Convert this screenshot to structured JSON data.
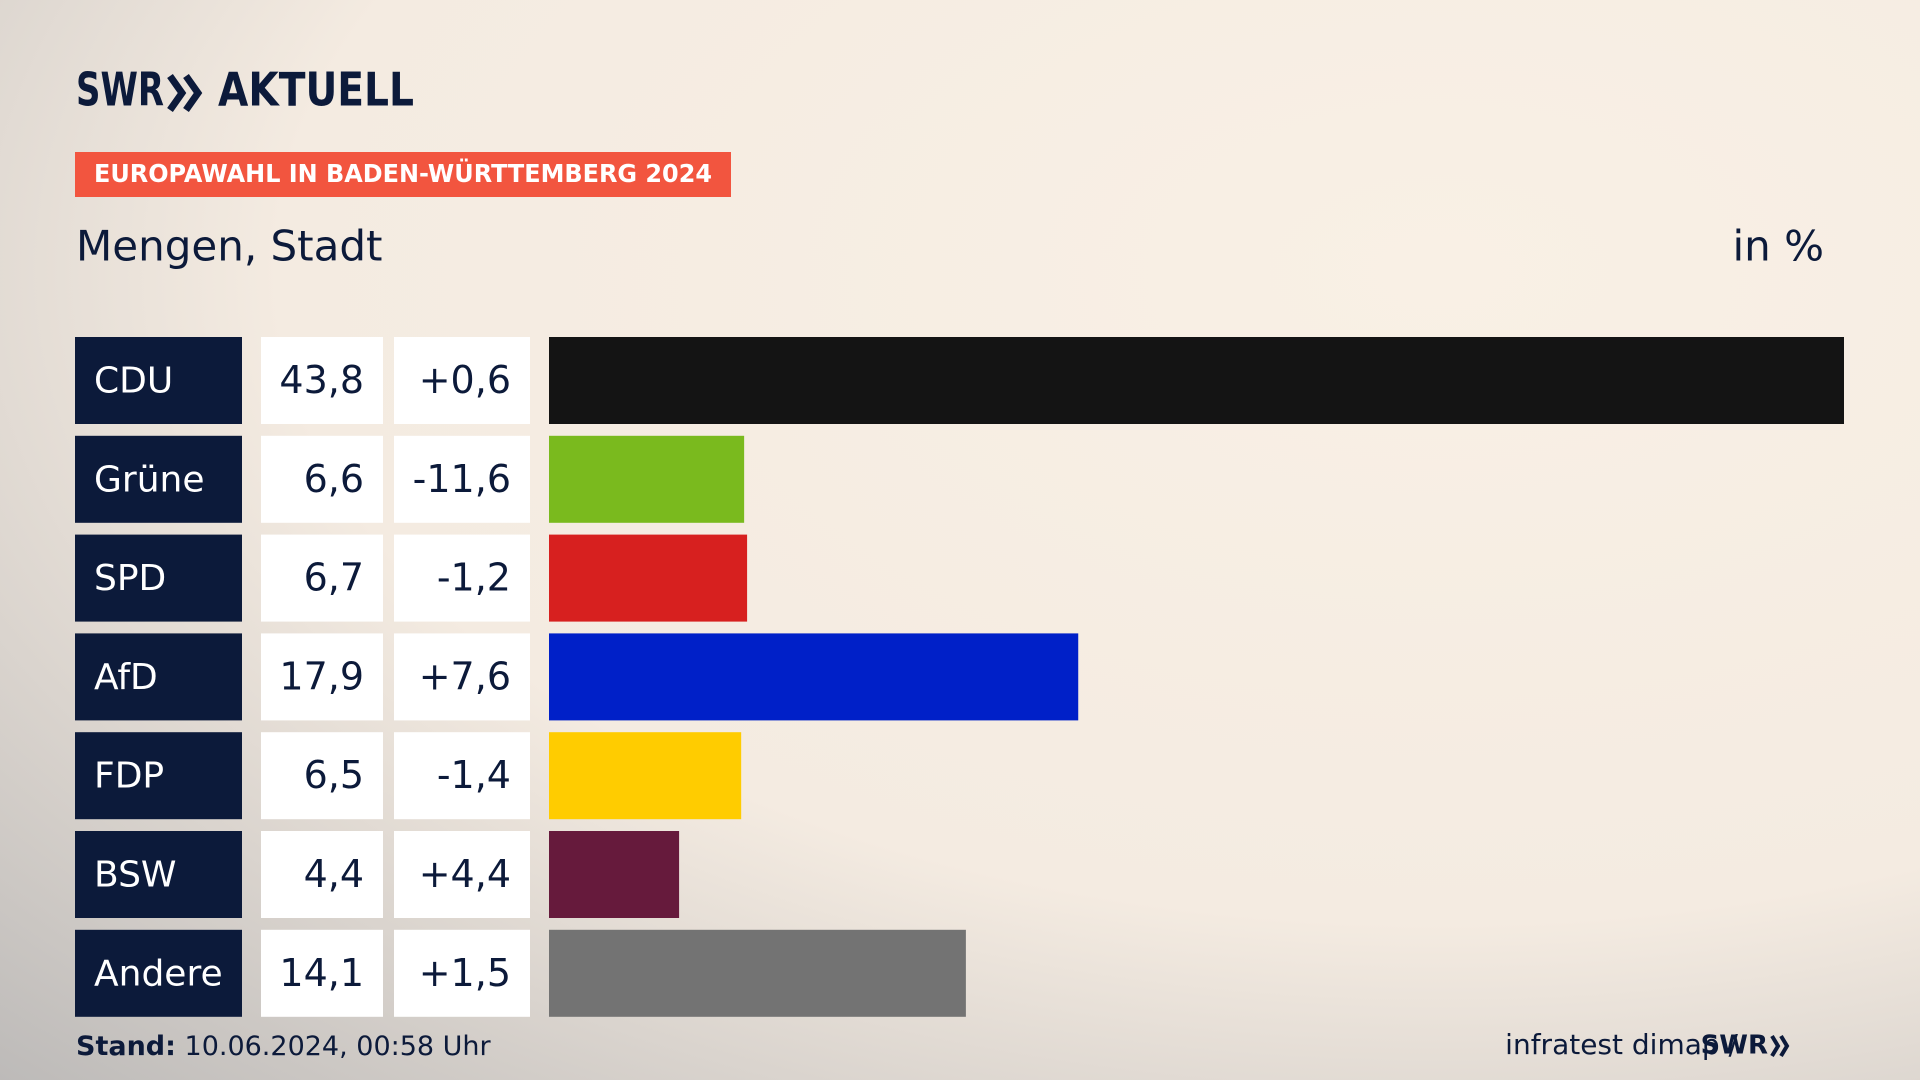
{
  "header": {
    "brand": "SWR",
    "section": "AKTUELL"
  },
  "chart_data": {
    "type": "bar",
    "orientation": "horizontal",
    "title": "EUROPAWAHL IN BADEN-WÜRTTEMBERG 2024",
    "subtitle": "Mengen, Stadt",
    "unit": "in %",
    "categories": [
      "CDU",
      "Grüne",
      "SPD",
      "AfD",
      "FDP",
      "BSW",
      "Andere"
    ],
    "values": [
      43.8,
      6.6,
      6.7,
      17.9,
      6.5,
      4.4,
      14.1
    ],
    "value_labels": [
      "43,8",
      "6,6",
      "6,7",
      "17,9",
      "6,5",
      "4,4",
      "14,1"
    ],
    "changes": [
      0.6,
      -11.6,
      -1.2,
      7.6,
      -1.4,
      4.4,
      1.5
    ],
    "change_labels": [
      "+0,6",
      "-11,6",
      "-1,2",
      "+7,6",
      "-1,4",
      "+4,4",
      "+1,5"
    ],
    "colors": [
      "#141414",
      "#7aba1e",
      "#d7201f",
      "#0020c8",
      "#ffcc00",
      "#661a3c",
      "#737373"
    ]
  },
  "footer": {
    "stand_label": "Stand:",
    "stand": "10.06.2024, 00:58 Uhr",
    "source": "infratest dimap /",
    "source_brand": "SWR"
  }
}
